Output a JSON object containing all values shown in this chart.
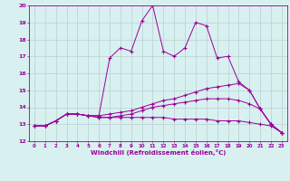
{
  "x": [
    0,
    1,
    2,
    3,
    4,
    5,
    6,
    7,
    8,
    9,
    10,
    11,
    12,
    13,
    14,
    15,
    16,
    17,
    18,
    19,
    20,
    21,
    22,
    23
  ],
  "line1": [
    12.9,
    12.9,
    13.2,
    13.6,
    13.6,
    13.5,
    13.5,
    16.9,
    17.5,
    17.3,
    19.1,
    20.0,
    17.3,
    17.0,
    17.5,
    19.0,
    18.8,
    16.9,
    17.0,
    15.5,
    15.0,
    13.9,
    13.0,
    12.5
  ],
  "line2": [
    12.9,
    12.9,
    13.2,
    13.6,
    13.6,
    13.5,
    13.5,
    13.6,
    13.7,
    13.8,
    14.0,
    14.2,
    14.4,
    14.5,
    14.7,
    14.9,
    15.1,
    15.2,
    15.3,
    15.4,
    15.0,
    13.9,
    13.0,
    12.5
  ],
  "line3": [
    12.9,
    12.9,
    13.2,
    13.6,
    13.6,
    13.5,
    13.4,
    13.4,
    13.4,
    13.4,
    13.4,
    13.4,
    13.4,
    13.3,
    13.3,
    13.3,
    13.3,
    13.2,
    13.2,
    13.2,
    13.1,
    13.0,
    12.9,
    12.5
  ],
  "line4": [
    12.9,
    12.9,
    13.2,
    13.6,
    13.6,
    13.5,
    13.4,
    13.4,
    13.5,
    13.6,
    13.8,
    14.0,
    14.1,
    14.2,
    14.3,
    14.4,
    14.5,
    14.5,
    14.5,
    14.4,
    14.2,
    13.9,
    13.0,
    12.5
  ],
  "color": "#990099",
  "bg_color": "#d9f0f0",
  "grid_color": "#b8d0d0",
  "xlabel": "Windchill (Refroidissement éolien,°C)",
  "ylim": [
    12,
    20
  ],
  "xlim": [
    -0.5,
    23.5
  ],
  "yticks": [
    12,
    13,
    14,
    15,
    16,
    17,
    18,
    19,
    20
  ],
  "xticks": [
    0,
    1,
    2,
    3,
    4,
    5,
    6,
    7,
    8,
    9,
    10,
    11,
    12,
    13,
    14,
    15,
    16,
    17,
    18,
    19,
    20,
    21,
    22,
    23
  ]
}
